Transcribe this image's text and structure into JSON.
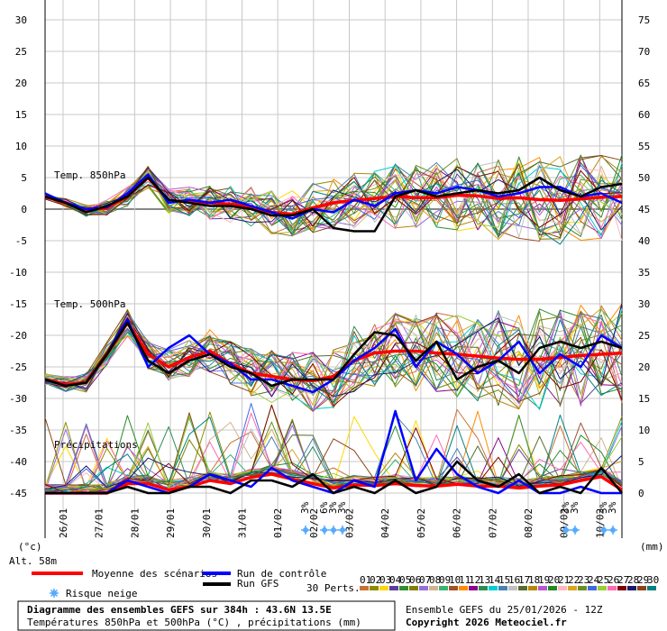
{
  "chart_data": {
    "type": "line",
    "xlabel": "",
    "left_unit": "(°c)",
    "right_unit": "(mm)",
    "left_ticks": [
      30,
      25,
      20,
      15,
      10,
      5,
      0,
      -5,
      -10,
      -15,
      -20,
      -25,
      -30,
      -35,
      -40,
      -45
    ],
    "right_ticks": [
      75,
      70,
      65,
      60,
      55,
      50,
      45,
      40,
      35,
      30,
      25,
      20,
      15,
      10,
      5,
      0
    ],
    "ylim_temp": [
      -45,
      30
    ],
    "ylim_precip": [
      0,
      75
    ],
    "dates": [
      "26/01",
      "27/01",
      "28/01",
      "29/01",
      "30/01",
      "31/01",
      "01/02",
      "02/02",
      "03/02",
      "04/02",
      "05/02",
      "06/02",
      "07/02",
      "08/02",
      "09/02",
      "10/02"
    ],
    "panel_labels": {
      "t850": "Temp. 850hPa",
      "t500": "Temp. 500hPa",
      "precip": "Précipitations"
    },
    "altitude_label": "Alt. 58m",
    "series": [
      {
        "name": "Moyenne des scénarios",
        "color": "#ff0000",
        "t850": [
          2,
          1,
          -0.2,
          0.2,
          2,
          5,
          1.3,
          1.2,
          1,
          0.8,
          0.3,
          -0.5,
          -0.8,
          0.2,
          1,
          1.4,
          1.7,
          2,
          1.8,
          1.8,
          2.2,
          2.1,
          1.7,
          1.8,
          1.5,
          1.4,
          1.6,
          1.9,
          2
        ],
        "t500": [
          -27,
          -27.8,
          -27.5,
          -23,
          -18,
          -23,
          -25,
          -23.5,
          -22.5,
          -24.5,
          -26,
          -26.5,
          -27,
          -27.2,
          -26.5,
          -24,
          -22.8,
          -22.5,
          -22.5,
          -22.8,
          -23,
          -23.3,
          -23.6,
          -23.8,
          -23.8,
          -23.5,
          -23.2,
          -23,
          -22.8
        ],
        "precip": [
          0,
          0,
          0,
          0,
          1.5,
          1.5,
          0.5,
          1,
          2,
          1.5,
          2.5,
          3,
          2.2,
          1.5,
          0.8,
          1.3,
          1.2,
          1.5,
          1.2,
          1.1,
          1.4,
          1.1,
          1.1,
          0.8,
          1.1,
          1.3,
          2,
          2.6,
          0.5
        ]
      },
      {
        "name": "Run de contrôle",
        "color": "#0000ff",
        "t850": [
          2.5,
          1,
          0,
          0.3,
          2.5,
          5.5,
          1,
          1.5,
          1,
          1.5,
          0.5,
          -0.5,
          -1.5,
          0,
          -0.5,
          1.5,
          0.5,
          2.5,
          3,
          2.5,
          3.5,
          3,
          2,
          2.5,
          3.5,
          3.5,
          2,
          2.5,
          1
        ],
        "t500": [
          -27,
          -28,
          -27.5,
          -23,
          -17.5,
          -25,
          -22,
          -20,
          -23,
          -24.5,
          -27,
          -27,
          -28,
          -29,
          -27,
          -24,
          -22,
          -19,
          -25,
          -21,
          -23,
          -26,
          -24,
          -21,
          -26,
          -23,
          -25,
          -20,
          -22
        ],
        "precip": [
          0,
          0,
          0,
          0,
          2,
          1,
          0,
          1,
          3,
          2,
          1,
          4,
          2,
          1,
          0,
          2,
          1,
          13,
          2,
          7,
          3,
          1,
          0,
          2,
          0,
          0,
          1,
          0,
          0
        ]
      },
      {
        "name": "Run GFS",
        "color": "#000000",
        "t850": [
          2,
          1,
          -0.5,
          0.5,
          2,
          5,
          1.5,
          1,
          0.5,
          0.5,
          0,
          -1,
          -1,
          0,
          -3,
          -3.5,
          -3.5,
          2,
          3,
          2,
          2.5,
          3,
          2.5,
          3,
          5,
          3,
          2,
          3.5,
          4
        ],
        "t500": [
          -27,
          -28,
          -27.5,
          -23,
          -18,
          -24,
          -26,
          -24,
          -23,
          -25,
          -26,
          -28,
          -27,
          -27,
          -27,
          -23,
          -19.5,
          -20,
          -24,
          -21,
          -27,
          -25,
          -24,
          -26,
          -22,
          -21,
          -22,
          -21,
          -22
        ],
        "precip": [
          0,
          0,
          0,
          0,
          1,
          0,
          0,
          1,
          1,
          0,
          2,
          2,
          1,
          3,
          0,
          1,
          0,
          2,
          0,
          1,
          5,
          2,
          1,
          3,
          0,
          1,
          0,
          4,
          0
        ]
      }
    ],
    "legend": {
      "mean": "Moyenne des scénarios",
      "control": "Run de contrôle",
      "gfs": "Run GFS",
      "snow": "Risque neige",
      "perts": "30 Perts.",
      "pert_ids": [
        "01",
        "02",
        "03",
        "04",
        "05",
        "06",
        "07",
        "08",
        "09",
        "10",
        "11",
        "12",
        "13",
        "14",
        "15",
        "16",
        "17",
        "18",
        "19",
        "20",
        "21",
        "22",
        "23",
        "24",
        "25",
        "26",
        "27",
        "28",
        "29",
        "30"
      ],
      "pert_colors": [
        "#c87137",
        "#8c8c00",
        "#ffd700",
        "#5f3c9a",
        "#2f8f2f",
        "#808000",
        "#9370db",
        "#d2b48c",
        "#3cb371",
        "#a0522d",
        "#ff8c00",
        "#8b008b",
        "#2e8b57",
        "#00ced1",
        "#4682b4",
        "#c0c0c0",
        "#556b2f",
        "#b8860b",
        "#ba55d3",
        "#228b22",
        "#ffb6c1",
        "#daa520",
        "#6b8e23",
        "#4169e1",
        "#9acd32",
        "#ff69b4",
        "#800000",
        "#191970",
        "#8b4513",
        "#008080"
      ]
    },
    "snow_labels": [
      "3%",
      "6%",
      "3%",
      "3%",
      "3%",
      "3%",
      "3%",
      "3%"
    ],
    "footer": {
      "title": "Diagramme des ensembles GEFS sur 384h : 43.6N 13.5E",
      "subtitle": "Températures 850hPa et 500hPa (°C) , précipitations (mm)",
      "run": "Ensemble GEFS du 25/01/2026 - 12Z",
      "copyright": "Copyright 2026 Meteociel.fr"
    }
  }
}
